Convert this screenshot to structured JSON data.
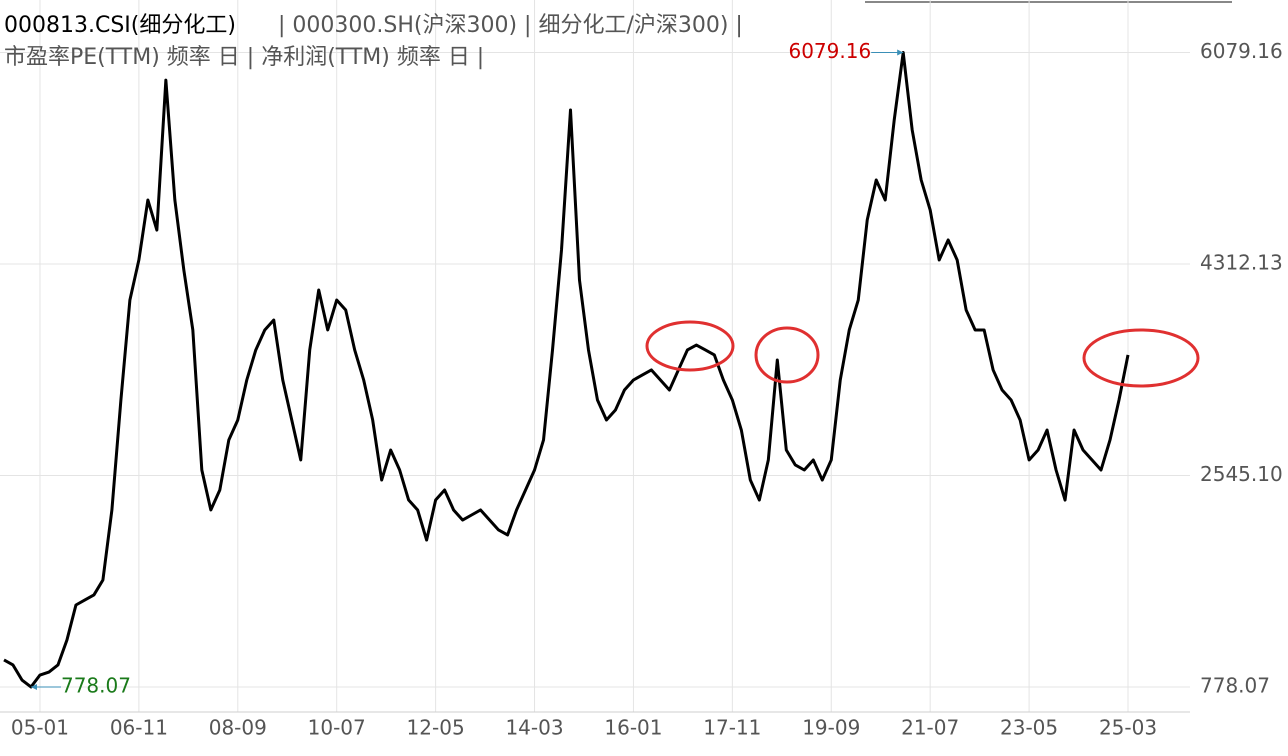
{
  "chart_data": {
    "type": "line",
    "title": "000813.CSI(细分化工)",
    "subtitle": "| 000300.SH(沪深300) | 细分化工/沪深300) |",
    "caption": "市盈率PE(TTM) 频率 日 | 净利润(TTM) 频率 日 |",
    "categories": [
      null,
      null,
      null,
      null,
      "05-01",
      null,
      null,
      null,
      null,
      null,
      null,
      null,
      null,
      null,
      null,
      "06-11",
      null,
      null,
      null,
      null,
      null,
      null,
      null,
      null,
      null,
      null,
      "08-09",
      null,
      null,
      null,
      null,
      null,
      null,
      null,
      null,
      null,
      null,
      "10-07",
      null,
      null,
      null,
      null,
      null,
      null,
      null,
      null,
      null,
      null,
      "12-05",
      null,
      null,
      null,
      null,
      null,
      null,
      null,
      null,
      null,
      null,
      "14-03",
      null,
      null,
      null,
      null,
      null,
      null,
      null,
      null,
      null,
      null,
      "16-01",
      null,
      null,
      null,
      null,
      null,
      null,
      null,
      null,
      null,
      null,
      "17-11",
      null,
      null,
      null,
      null,
      null,
      null,
      null,
      null,
      null,
      null,
      "19-09",
      null,
      null,
      null,
      null,
      null,
      null,
      null,
      null,
      null,
      null,
      "21-07",
      null,
      null,
      null,
      null,
      null,
      null,
      null,
      null,
      null,
      null,
      "23-05",
      null,
      null,
      null,
      null,
      null,
      null,
      null,
      null,
      null,
      null,
      "25-03"
    ],
    "values": [
      1004,
      962,
      836,
      778.07,
      878,
      903,
      962,
      1171,
      1463,
      1505,
      1547,
      1672,
      2257,
      3176,
      4011,
      4346,
      4847,
      4596,
      5849,
      4847,
      4262,
      3761,
      2591,
      2257,
      2424,
      2842,
      3009,
      3343,
      3594,
      3761,
      3844,
      3343,
      3009,
      2675,
      3594,
      4095,
      3761,
      4011,
      3928,
      3594,
      3343,
      3009,
      2507,
      2758,
      2591,
      2340,
      2257,
      2006,
      2340,
      2424,
      2257,
      2173,
      2215,
      2257,
      2173,
      2090,
      2048,
      2257,
      2424,
      2591,
      2842,
      3594,
      4429,
      5599,
      4178,
      3594,
      3176,
      3009,
      3092,
      3259,
      3343,
      3385,
      3427,
      3343,
      3259,
      3427,
      3594,
      3635,
      3594,
      3552,
      3343,
      3176,
      2925,
      2507,
      2340,
      2675,
      3510,
      2758,
      2633,
      2591,
      2675,
      2507,
      2675,
      3343,
      3761,
      4011,
      4680,
      5014,
      4847,
      5515,
      6079.16,
      5432,
      5014,
      4763,
      4346,
      4513,
      4346,
      3928,
      3761,
      3761,
      3427,
      3259,
      3176,
      3009,
      2675,
      2758,
      2925,
      2591,
      2340,
      2925,
      2758,
      2675,
      2591,
      2842,
      3176,
      3552
    ],
    "color": "#000000",
    "ylim": [
      569,
      6518
    ],
    "yticks": [
      778.07,
      {
        "value": 2545.1,
        "label": "2545.10"
      },
      {
        "value": 4312.13,
        "label": "4312.13"
      },
      6079.16
    ],
    "grid": true,
    "annotations": [
      {
        "text": "6079.16",
        "color": "#cc0000",
        "index": 100
      },
      {
        "text": "778.07",
        "color": "#1a7a1a",
        "index": 3
      }
    ]
  }
}
